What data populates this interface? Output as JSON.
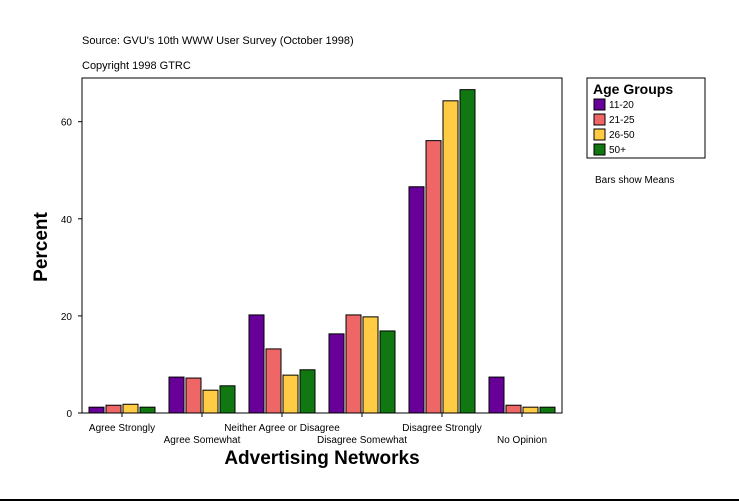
{
  "chart_data": {
    "type": "bar",
    "source": "Source: GVU's 10th WWW User Survey (October 1998)",
    "copyright": "Copyright 1998 GTRC",
    "x_label": "Advertising Networks",
    "y_label": "Percent",
    "legend_title": "Age Groups",
    "note": "Bars show Means",
    "categories": [
      "Agree Strongly",
      "Agree Somewhat",
      "Neither Agree or Disagree",
      "Disagree Somewhat",
      "Disagree Strongly",
      "No Opinion"
    ],
    "series": [
      {
        "name": "11-20",
        "color": "#660099",
        "values": [
          1.2,
          7.4,
          20.2,
          16.3,
          46.6,
          7.4
        ]
      },
      {
        "name": "21-25",
        "color": "#ee6666",
        "values": [
          1.6,
          7.2,
          13.2,
          20.2,
          56.1,
          1.6
        ]
      },
      {
        "name": "26-50",
        "color": "#ffcc44",
        "values": [
          1.8,
          4.7,
          7.8,
          19.8,
          64.3,
          1.2
        ]
      },
      {
        "name": "50+",
        "color": "#117711",
        "values": [
          1.2,
          5.6,
          8.9,
          16.9,
          66.6,
          1.2
        ]
      }
    ],
    "ylim": [
      0,
      69
    ],
    "yticks": [
      0,
      20,
      40,
      60
    ],
    "legend": "right"
  }
}
